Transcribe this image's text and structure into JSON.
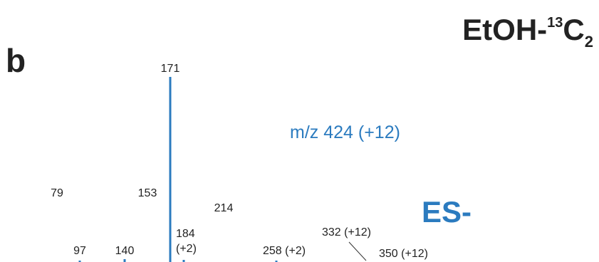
{
  "panel_label": "b",
  "compound": {
    "base": "EtOH-",
    "isotope": "13",
    "element": "C",
    "count": "2"
  },
  "precursor_label": "m/z 424 (+12)",
  "ion_mode": "ES-",
  "colors": {
    "peak": "#2b7bbf",
    "text": "#222222",
    "leader": "#333333"
  },
  "chart_data": {
    "type": "bar",
    "title": "",
    "xlabel": "",
    "ylabel": "",
    "ylim": [
      0,
      100
    ],
    "grid": false,
    "peaks": [
      {
        "mz": 79,
        "label": "79",
        "intensity": 34
      },
      {
        "mz": 97,
        "label": "97",
        "intensity": 4
      },
      {
        "mz": 140,
        "label": "140",
        "intensity": 2
      },
      {
        "mz": 153,
        "label": "153",
        "intensity": 35
      },
      {
        "mz": 171,
        "label": "171",
        "intensity": 100
      },
      {
        "mz": 184,
        "label": "184\n(+2)",
        "intensity": 3
      },
      {
        "mz": 214,
        "label": "214",
        "intensity": 26
      },
      {
        "mz": 258,
        "label": "258 (+2)",
        "intensity": 2
      },
      {
        "mz": 332,
        "label": "332 (+12)",
        "intensity": 0
      },
      {
        "mz": 350,
        "label": "350 (+12)",
        "intensity": 0
      }
    ]
  }
}
